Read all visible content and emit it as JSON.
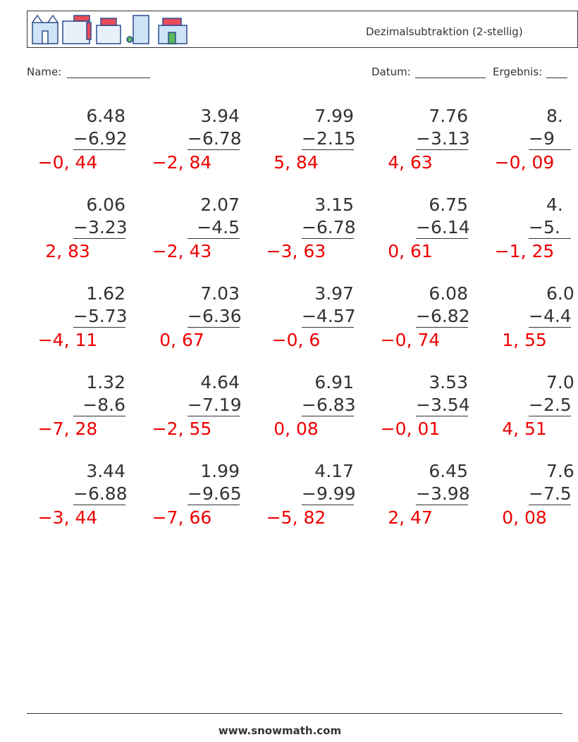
{
  "header": {
    "title": "Dezimalsubtraktion (2-stellig)"
  },
  "fields": {
    "name": "Name:",
    "date": "Datum:",
    "score": "Ergebnis:"
  },
  "problems": [
    [
      {
        "top": "6.48",
        "sub": "−6.92",
        "answer": "−0, 44"
      },
      {
        "top": "3.94",
        "sub": "−6.78",
        "answer": "−2, 84"
      },
      {
        "top": "7.99",
        "sub": "−2.15",
        "answer": "5, 84"
      },
      {
        "top": "7.76",
        "sub": "−3.13",
        "answer": "4, 63"
      },
      {
        "top": "8.",
        "sub": "−9",
        "answer": "−0, 09"
      }
    ],
    [
      {
        "top": "6.06",
        "sub": "−3.23",
        "answer": "2, 83"
      },
      {
        "top": "2.07",
        "sub": "−4.5",
        "answer": "−2, 43"
      },
      {
        "top": "3.15",
        "sub": "−6.78",
        "answer": "−3, 63"
      },
      {
        "top": "6.75",
        "sub": "−6.14",
        "answer": "0, 61"
      },
      {
        "top": "4.",
        "sub": "−5.",
        "answer": "−1, 25"
      }
    ],
    [
      {
        "top": "1.62",
        "sub": "−5.73",
        "answer": "−4, 11"
      },
      {
        "top": "7.03",
        "sub": "−6.36",
        "answer": "0, 67"
      },
      {
        "top": "3.97",
        "sub": "−4.57",
        "answer": "−0, 6"
      },
      {
        "top": "6.08",
        "sub": "−6.82",
        "answer": "−0, 74"
      },
      {
        "top": "6.0",
        "sub": "−4.4",
        "answer": "1, 55"
      }
    ],
    [
      {
        "top": "1.32",
        "sub": "−8.6",
        "answer": "−7, 28"
      },
      {
        "top": "4.64",
        "sub": "−7.19",
        "answer": "−2, 55"
      },
      {
        "top": "6.91",
        "sub": "−6.83",
        "answer": "0, 08"
      },
      {
        "top": "3.53",
        "sub": "−3.54",
        "answer": "−0, 01"
      },
      {
        "top": "7.0",
        "sub": "−2.5",
        "answer": "4, 51"
      }
    ],
    [
      {
        "top": "3.44",
        "sub": "−6.88",
        "answer": "−3, 44"
      },
      {
        "top": "1.99",
        "sub": "−9.65",
        "answer": "−7, 66"
      },
      {
        "top": "4.17",
        "sub": "−9.99",
        "answer": "−5, 82"
      },
      {
        "top": "6.45",
        "sub": "−3.98",
        "answer": "2, 47"
      },
      {
        "top": "7.6",
        "sub": "−7.5",
        "answer": "0, 08"
      }
    ]
  ],
  "footer": "www.snowmath.com"
}
